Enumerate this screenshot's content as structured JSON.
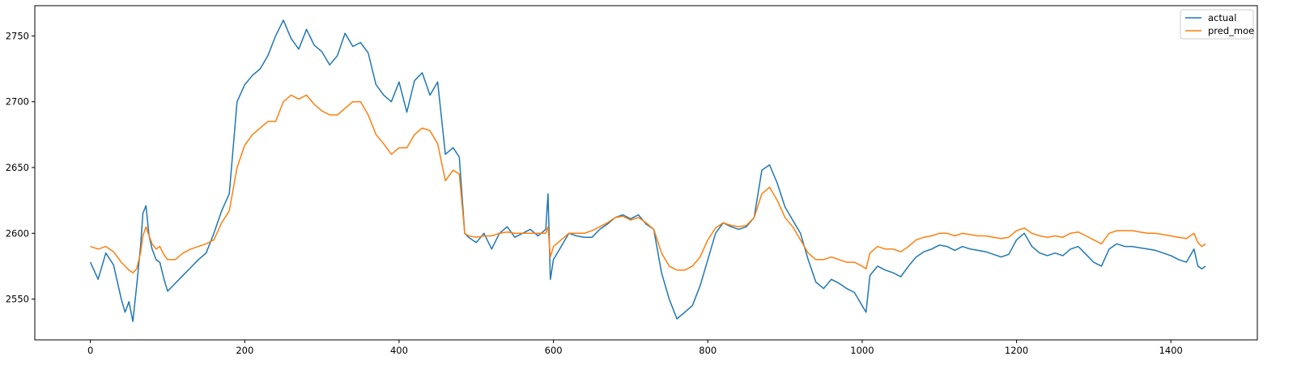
{
  "chart_data": {
    "type": "line",
    "title": "",
    "xlabel": "",
    "ylabel": "",
    "xlim": [
      -72,
      1512
    ],
    "ylim": [
      2519,
      2773
    ],
    "xticks": [
      0,
      200,
      400,
      600,
      800,
      1000,
      1200,
      1400
    ],
    "yticks": [
      2550,
      2600,
      2650,
      2700,
      2750
    ],
    "grid": false,
    "legend_position": "top-right",
    "series": [
      {
        "name": "actual",
        "color": "#1f77b4",
        "points": [
          [
            0,
            2578
          ],
          [
            10,
            2565
          ],
          [
            20,
            2585
          ],
          [
            30,
            2576
          ],
          [
            40,
            2550
          ],
          [
            45,
            2540
          ],
          [
            50,
            2548
          ],
          [
            55,
            2533
          ],
          [
            60,
            2560
          ],
          [
            65,
            2590
          ],
          [
            68,
            2615
          ],
          [
            72,
            2621
          ],
          [
            76,
            2598
          ],
          [
            80,
            2588
          ],
          [
            85,
            2580
          ],
          [
            90,
            2578
          ],
          [
            95,
            2566
          ],
          [
            100,
            2556
          ],
          [
            110,
            2562
          ],
          [
            120,
            2568
          ],
          [
            130,
            2574
          ],
          [
            140,
            2580
          ],
          [
            150,
            2585
          ],
          [
            160,
            2600
          ],
          [
            170,
            2617
          ],
          [
            180,
            2630
          ],
          [
            190,
            2700
          ],
          [
            200,
            2713
          ],
          [
            210,
            2720
          ],
          [
            220,
            2725
          ],
          [
            230,
            2735
          ],
          [
            240,
            2750
          ],
          [
            250,
            2762
          ],
          [
            260,
            2748
          ],
          [
            270,
            2740
          ],
          [
            280,
            2755
          ],
          [
            290,
            2743
          ],
          [
            300,
            2738
          ],
          [
            310,
            2728
          ],
          [
            320,
            2735
          ],
          [
            330,
            2752
          ],
          [
            340,
            2742
          ],
          [
            350,
            2745
          ],
          [
            360,
            2737
          ],
          [
            370,
            2713
          ],
          [
            380,
            2705
          ],
          [
            390,
            2700
          ],
          [
            400,
            2715
          ],
          [
            410,
            2692
          ],
          [
            420,
            2716
          ],
          [
            430,
            2722
          ],
          [
            440,
            2705
          ],
          [
            450,
            2715
          ],
          [
            460,
            2660
          ],
          [
            470,
            2665
          ],
          [
            478,
            2658
          ],
          [
            485,
            2600
          ],
          [
            490,
            2597
          ],
          [
            500,
            2593
          ],
          [
            510,
            2600
          ],
          [
            520,
            2588
          ],
          [
            530,
            2600
          ],
          [
            540,
            2605
          ],
          [
            550,
            2597
          ],
          [
            560,
            2600
          ],
          [
            570,
            2603
          ],
          [
            580,
            2598
          ],
          [
            590,
            2603
          ],
          [
            593,
            2630
          ],
          [
            596,
            2565
          ],
          [
            600,
            2580
          ],
          [
            610,
            2590
          ],
          [
            620,
            2600
          ],
          [
            630,
            2598
          ],
          [
            640,
            2597
          ],
          [
            650,
            2597
          ],
          [
            660,
            2603
          ],
          [
            670,
            2607
          ],
          [
            680,
            2612
          ],
          [
            690,
            2614
          ],
          [
            700,
            2611
          ],
          [
            710,
            2614
          ],
          [
            720,
            2607
          ],
          [
            730,
            2603
          ],
          [
            740,
            2570
          ],
          [
            750,
            2550
          ],
          [
            760,
            2535
          ],
          [
            770,
            2540
          ],
          [
            780,
            2545
          ],
          [
            790,
            2560
          ],
          [
            800,
            2580
          ],
          [
            810,
            2600
          ],
          [
            820,
            2608
          ],
          [
            830,
            2605
          ],
          [
            840,
            2603
          ],
          [
            850,
            2605
          ],
          [
            860,
            2612
          ],
          [
            870,
            2648
          ],
          [
            880,
            2652
          ],
          [
            890,
            2638
          ],
          [
            900,
            2620
          ],
          [
            910,
            2610
          ],
          [
            920,
            2600
          ],
          [
            930,
            2580
          ],
          [
            940,
            2563
          ],
          [
            950,
            2558
          ],
          [
            960,
            2565
          ],
          [
            970,
            2562
          ],
          [
            980,
            2558
          ],
          [
            990,
            2555
          ],
          [
            1000,
            2545
          ],
          [
            1005,
            2540
          ],
          [
            1010,
            2568
          ],
          [
            1020,
            2575
          ],
          [
            1030,
            2572
          ],
          [
            1040,
            2570
          ],
          [
            1050,
            2567
          ],
          [
            1060,
            2575
          ],
          [
            1070,
            2582
          ],
          [
            1080,
            2586
          ],
          [
            1090,
            2588
          ],
          [
            1100,
            2591
          ],
          [
            1110,
            2590
          ],
          [
            1120,
            2587
          ],
          [
            1130,
            2590
          ],
          [
            1140,
            2588
          ],
          [
            1150,
            2587
          ],
          [
            1160,
            2586
          ],
          [
            1170,
            2584
          ],
          [
            1180,
            2582
          ],
          [
            1190,
            2584
          ],
          [
            1200,
            2595
          ],
          [
            1210,
            2600
          ],
          [
            1220,
            2590
          ],
          [
            1230,
            2585
          ],
          [
            1240,
            2583
          ],
          [
            1250,
            2585
          ],
          [
            1260,
            2583
          ],
          [
            1270,
            2588
          ],
          [
            1280,
            2590
          ],
          [
            1290,
            2584
          ],
          [
            1300,
            2578
          ],
          [
            1310,
            2575
          ],
          [
            1320,
            2588
          ],
          [
            1330,
            2592
          ],
          [
            1340,
            2590
          ],
          [
            1350,
            2590
          ],
          [
            1360,
            2589
          ],
          [
            1370,
            2588
          ],
          [
            1380,
            2587
          ],
          [
            1390,
            2585
          ],
          [
            1400,
            2583
          ],
          [
            1410,
            2580
          ],
          [
            1420,
            2578
          ],
          [
            1430,
            2588
          ],
          [
            1435,
            2575
          ],
          [
            1440,
            2573
          ],
          [
            1445,
            2575
          ]
        ]
      },
      {
        "name": "pred_moe",
        "color": "#ff7f0e",
        "points": [
          [
            0,
            2590
          ],
          [
            10,
            2588
          ],
          [
            20,
            2590
          ],
          [
            30,
            2586
          ],
          [
            40,
            2578
          ],
          [
            45,
            2575
          ],
          [
            50,
            2572
          ],
          [
            55,
            2570
          ],
          [
            60,
            2573
          ],
          [
            65,
            2585
          ],
          [
            68,
            2598
          ],
          [
            72,
            2605
          ],
          [
            76,
            2598
          ],
          [
            80,
            2592
          ],
          [
            85,
            2588
          ],
          [
            90,
            2590
          ],
          [
            95,
            2584
          ],
          [
            100,
            2580
          ],
          [
            110,
            2580
          ],
          [
            120,
            2585
          ],
          [
            130,
            2588
          ],
          [
            140,
            2590
          ],
          [
            150,
            2592
          ],
          [
            160,
            2595
          ],
          [
            170,
            2608
          ],
          [
            180,
            2617
          ],
          [
            190,
            2650
          ],
          [
            200,
            2667
          ],
          [
            210,
            2675
          ],
          [
            220,
            2680
          ],
          [
            230,
            2685
          ],
          [
            240,
            2685
          ],
          [
            250,
            2700
          ],
          [
            260,
            2705
          ],
          [
            270,
            2702
          ],
          [
            280,
            2705
          ],
          [
            290,
            2698
          ],
          [
            300,
            2693
          ],
          [
            310,
            2690
          ],
          [
            320,
            2690
          ],
          [
            330,
            2695
          ],
          [
            340,
            2700
          ],
          [
            350,
            2700
          ],
          [
            360,
            2690
          ],
          [
            370,
            2675
          ],
          [
            380,
            2668
          ],
          [
            390,
            2660
          ],
          [
            400,
            2665
          ],
          [
            410,
            2665
          ],
          [
            420,
            2675
          ],
          [
            430,
            2680
          ],
          [
            440,
            2678
          ],
          [
            450,
            2668
          ],
          [
            460,
            2640
          ],
          [
            470,
            2648
          ],
          [
            478,
            2645
          ],
          [
            485,
            2600
          ],
          [
            490,
            2598
          ],
          [
            500,
            2597
          ],
          [
            510,
            2598
          ],
          [
            520,
            2598
          ],
          [
            530,
            2600
          ],
          [
            540,
            2601
          ],
          [
            550,
            2600
          ],
          [
            560,
            2600
          ],
          [
            570,
            2600
          ],
          [
            580,
            2600
          ],
          [
            590,
            2600
          ],
          [
            593,
            2605
          ],
          [
            596,
            2582
          ],
          [
            600,
            2590
          ],
          [
            610,
            2595
          ],
          [
            620,
            2600
          ],
          [
            630,
            2600
          ],
          [
            640,
            2600
          ],
          [
            650,
            2602
          ],
          [
            660,
            2605
          ],
          [
            670,
            2608
          ],
          [
            680,
            2612
          ],
          [
            690,
            2613
          ],
          [
            700,
            2610
          ],
          [
            710,
            2612
          ],
          [
            720,
            2608
          ],
          [
            730,
            2603
          ],
          [
            740,
            2585
          ],
          [
            750,
            2575
          ],
          [
            760,
            2572
          ],
          [
            770,
            2572
          ],
          [
            780,
            2575
          ],
          [
            790,
            2582
          ],
          [
            800,
            2595
          ],
          [
            810,
            2604
          ],
          [
            820,
            2608
          ],
          [
            830,
            2606
          ],
          [
            840,
            2605
          ],
          [
            850,
            2606
          ],
          [
            860,
            2612
          ],
          [
            870,
            2630
          ],
          [
            880,
            2635
          ],
          [
            890,
            2625
          ],
          [
            900,
            2612
          ],
          [
            910,
            2605
          ],
          [
            920,
            2595
          ],
          [
            930,
            2585
          ],
          [
            940,
            2580
          ],
          [
            950,
            2580
          ],
          [
            960,
            2582
          ],
          [
            970,
            2580
          ],
          [
            980,
            2578
          ],
          [
            990,
            2578
          ],
          [
            1000,
            2575
          ],
          [
            1005,
            2573
          ],
          [
            1010,
            2585
          ],
          [
            1020,
            2590
          ],
          [
            1030,
            2588
          ],
          [
            1040,
            2588
          ],
          [
            1050,
            2586
          ],
          [
            1060,
            2590
          ],
          [
            1070,
            2595
          ],
          [
            1080,
            2597
          ],
          [
            1090,
            2598
          ],
          [
            1100,
            2600
          ],
          [
            1110,
            2600
          ],
          [
            1120,
            2598
          ],
          [
            1130,
            2600
          ],
          [
            1140,
            2599
          ],
          [
            1150,
            2598
          ],
          [
            1160,
            2598
          ],
          [
            1170,
            2597
          ],
          [
            1180,
            2596
          ],
          [
            1190,
            2597
          ],
          [
            1200,
            2602
          ],
          [
            1210,
            2604
          ],
          [
            1220,
            2600
          ],
          [
            1230,
            2598
          ],
          [
            1240,
            2597
          ],
          [
            1250,
            2598
          ],
          [
            1260,
            2597
          ],
          [
            1270,
            2600
          ],
          [
            1280,
            2601
          ],
          [
            1290,
            2598
          ],
          [
            1300,
            2595
          ],
          [
            1310,
            2592
          ],
          [
            1320,
            2600
          ],
          [
            1330,
            2602
          ],
          [
            1340,
            2602
          ],
          [
            1350,
            2602
          ],
          [
            1360,
            2601
          ],
          [
            1370,
            2600
          ],
          [
            1380,
            2600
          ],
          [
            1390,
            2599
          ],
          [
            1400,
            2598
          ],
          [
            1410,
            2597
          ],
          [
            1420,
            2596
          ],
          [
            1430,
            2600
          ],
          [
            1435,
            2593
          ],
          [
            1440,
            2590
          ],
          [
            1445,
            2592
          ]
        ]
      }
    ]
  }
}
